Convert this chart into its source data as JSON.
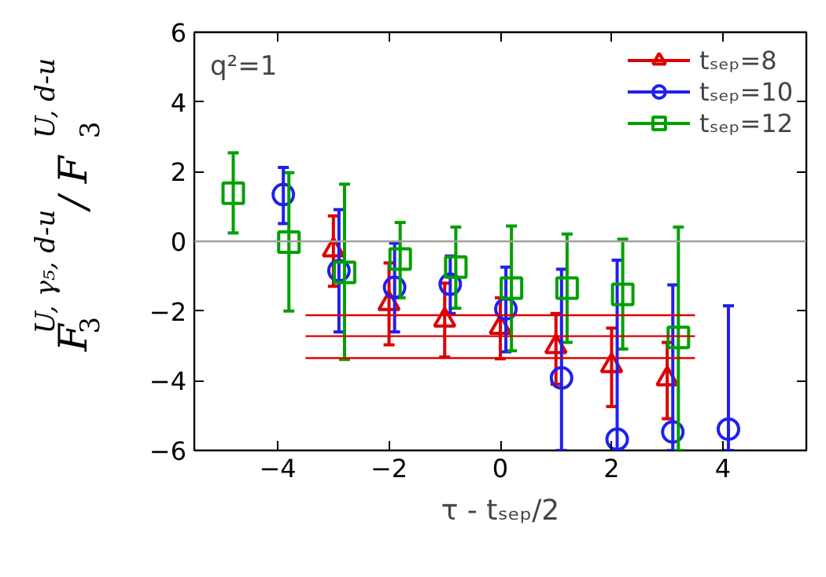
{
  "chart_data": {
    "type": "scatter",
    "xlabel": "τ - tₛₑₚ/2",
    "ylabel": "F$_{3}$$^{U, γ₅, d-u}$ / F$_{3}$$^{U, d-u}$",
    "annotations": [
      "q²=1"
    ],
    "xlim": [
      -5.5,
      5.5
    ],
    "ylim": [
      -6,
      6
    ],
    "xticks": [
      -4,
      -2,
      0,
      2,
      4
    ],
    "yticks": [
      -6,
      -4,
      -2,
      0,
      2,
      4,
      6
    ],
    "legend": "top right",
    "ref_lines": [
      {
        "axis": "y",
        "value": 0,
        "color": "#a0a0a0"
      }
    ],
    "series": [
      {
        "name": "tₛₑₚ=8",
        "color": "#dd0000",
        "marker": "triangle",
        "x": [
          -3,
          -2,
          -1,
          0,
          1,
          2,
          3
        ],
        "values": [
          -0.25,
          -1.79,
          -2.26,
          -2.47,
          -3.02,
          -3.57,
          -3.95
        ],
        "errors": [
          [
            -1.29,
            0.73
          ],
          [
            -2.97,
            -0.62
          ],
          [
            -3.32,
            -1.2
          ],
          [
            -3.37,
            -1.62
          ],
          [
            -4.1,
            -2.07
          ],
          [
            -4.74,
            -2.49
          ],
          [
            -5.09,
            -2.9
          ]
        ]
      },
      {
        "name": "tₛₑₚ=10",
        "color": "#2020ee",
        "marker": "circle",
        "x": [
          -3.9,
          -2.9,
          -1.9,
          -0.9,
          0.1,
          1.1,
          2.1,
          3.1,
          4.1
        ],
        "values": [
          1.34,
          -0.84,
          -1.32,
          -1.23,
          -1.94,
          -3.92,
          -5.68,
          -5.47,
          -5.39
        ],
        "errors": [
          [
            0.51,
            2.12
          ],
          [
            -2.6,
            0.91
          ],
          [
            -2.6,
            -0.05
          ],
          [
            -2.07,
            -0.42
          ],
          [
            -3.17,
            -0.74
          ],
          [
            -6,
            -0.8
          ],
          [
            -6,
            -0.54
          ],
          [
            -6,
            -1.25
          ],
          [
            -6,
            -1.85
          ]
        ]
      },
      {
        "name": "tₛₑₚ=12",
        "color": "#00a000",
        "marker": "square",
        "x": [
          -4.8,
          -3.8,
          -2.8,
          -1.8,
          -0.8,
          0.2,
          1.2,
          2.2,
          3.2
        ],
        "values": [
          1.38,
          -0.02,
          -0.89,
          -0.51,
          -0.74,
          -1.34,
          -1.34,
          -1.52,
          -2.76
        ],
        "errors": [
          [
            0.24,
            2.54
          ],
          [
            -2.0,
            1.97
          ],
          [
            -3.39,
            1.64
          ],
          [
            -1.62,
            0.54
          ],
          [
            -1.92,
            0.41
          ],
          [
            -3.14,
            0.44
          ],
          [
            -2.9,
            0.21
          ],
          [
            -3.09,
            0.06
          ],
          [
            -6,
            0.41
          ]
        ]
      },
      {
        "type": "line",
        "color": "#dd0000",
        "x": [
          -3.5,
          3.5
        ],
        "values": [
          -2.12,
          -2.12
        ]
      },
      {
        "type": "line",
        "color": "#dd0000",
        "x": [
          -3.5,
          3.5
        ],
        "values": [
          -2.72,
          -2.72
        ]
      },
      {
        "type": "line",
        "color": "#dd0000",
        "x": [
          -3.5,
          3.5
        ],
        "values": [
          -3.35,
          -3.35
        ]
      }
    ]
  }
}
